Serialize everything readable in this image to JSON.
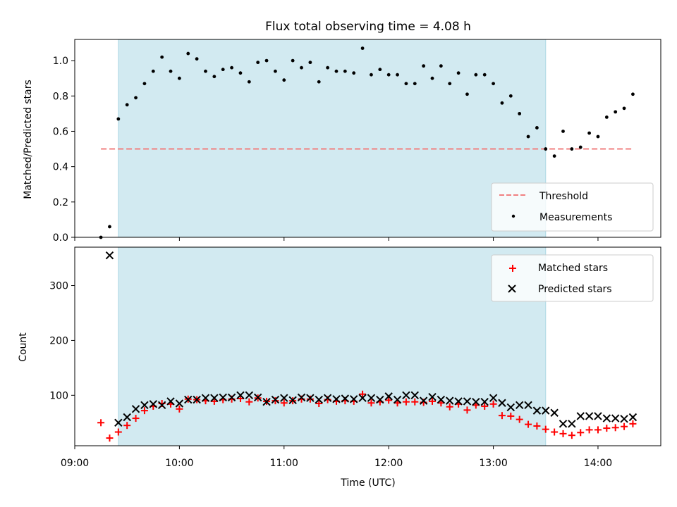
{
  "title": "Flux total observing time = 4.08 h",
  "colors": {
    "observing_band": "#add8e6",
    "threshold": "#f08080",
    "measurements": "#000000",
    "matched": "#ff0000",
    "predicted": "#000000"
  },
  "chart_data": [
    {
      "type": "scatter",
      "panel": "top",
      "ylabel": "Matched/Predicted stars",
      "xlim": [
        "09:00",
        "14:36"
      ],
      "ylim": [
        0,
        1.12
      ],
      "yticks": [
        "0.0",
        "0.2",
        "0.4",
        "0.6",
        "0.8",
        "1.0"
      ],
      "observing_window": [
        "09:25",
        "13:30"
      ],
      "legend": {
        "placement": "lower-right",
        "entries": [
          "Threshold",
          "Measurements"
        ]
      },
      "threshold": {
        "name": "Threshold",
        "value": 0.5,
        "x_range": [
          "09:15",
          "14:20"
        ],
        "style": "dashed"
      },
      "series": [
        {
          "name": "Measurements",
          "x": [
            "09:15",
            "09:20",
            "09:25",
            "09:30",
            "09:35",
            "09:40",
            "09:45",
            "09:50",
            "09:55",
            "10:00",
            "10:05",
            "10:10",
            "10:15",
            "10:20",
            "10:25",
            "10:30",
            "10:35",
            "10:40",
            "10:45",
            "10:50",
            "10:55",
            "11:00",
            "11:05",
            "11:10",
            "11:15",
            "11:20",
            "11:25",
            "11:30",
            "11:35",
            "11:40",
            "11:45",
            "11:50",
            "11:55",
            "12:00",
            "12:05",
            "12:10",
            "12:15",
            "12:20",
            "12:25",
            "12:30",
            "12:35",
            "12:40",
            "12:45",
            "12:50",
            "12:55",
            "13:00",
            "13:05",
            "13:10",
            "13:15",
            "13:20",
            "13:25",
            "13:30",
            "13:35",
            "13:40",
            "13:45",
            "13:50",
            "13:55",
            "14:00",
            "14:05",
            "14:10",
            "14:15",
            "14:20"
          ],
          "y": [
            0.0,
            0.06,
            0.67,
            0.75,
            0.79,
            0.87,
            0.94,
            1.02,
            0.94,
            0.9,
            1.04,
            1.01,
            0.94,
            0.91,
            0.95,
            0.96,
            0.93,
            0.88,
            0.99,
            1.0,
            0.94,
            0.89,
            1.0,
            0.96,
            0.99,
            0.88,
            0.96,
            0.94,
            0.94,
            0.93,
            1.07,
            0.92,
            0.95,
            0.92,
            0.92,
            0.87,
            0.87,
            0.97,
            0.9,
            0.97,
            0.87,
            0.93,
            0.81,
            0.92,
            0.92,
            0.87,
            0.76,
            0.8,
            0.7,
            0.57,
            0.62,
            0.5,
            0.46,
            0.6,
            0.5,
            0.51,
            0.59,
            0.57,
            0.68,
            0.71,
            0.73,
            0.81
          ]
        }
      ]
    },
    {
      "type": "scatter",
      "panel": "bottom",
      "xlabel": "Time (UTC)",
      "ylabel": "Count",
      "xlim": [
        "09:00",
        "14:36"
      ],
      "ylim": [
        8,
        370
      ],
      "xticks": [
        "09:00",
        "10:00",
        "11:00",
        "12:00",
        "13:00",
        "14:00"
      ],
      "yticks": [
        "100",
        "200",
        "300"
      ],
      "observing_window": [
        "09:25",
        "13:30"
      ],
      "legend": {
        "placement": "upper-right",
        "entries": [
          "Matched stars",
          "Predicted stars"
        ]
      },
      "series": [
        {
          "name": "Matched stars",
          "x": [
            "09:15",
            "09:20",
            "09:25",
            "09:30",
            "09:35",
            "09:40",
            "09:45",
            "09:50",
            "09:55",
            "10:00",
            "10:05",
            "10:10",
            "10:15",
            "10:20",
            "10:25",
            "10:30",
            "10:35",
            "10:40",
            "10:45",
            "10:50",
            "10:55",
            "11:00",
            "11:05",
            "11:10",
            "11:15",
            "11:20",
            "11:25",
            "11:30",
            "11:35",
            "11:40",
            "11:45",
            "11:50",
            "11:55",
            "12:00",
            "12:05",
            "12:10",
            "12:15",
            "12:20",
            "12:25",
            "12:30",
            "12:35",
            "12:40",
            "12:45",
            "12:50",
            "12:55",
            "13:00",
            "13:05",
            "13:10",
            "13:15",
            "13:20",
            "13:25",
            "13:30",
            "13:35",
            "13:40",
            "13:45",
            "13:50",
            "13:55",
            "14:00",
            "14:05",
            "14:10",
            "14:15",
            "14:20"
          ],
          "y": [
            50,
            22,
            33,
            45,
            58,
            72,
            80,
            85,
            84,
            75,
            93,
            92,
            90,
            89,
            92,
            93,
            94,
            88,
            95,
            89,
            90,
            86,
            90,
            93,
            93,
            85,
            92,
            89,
            90,
            89,
            102,
            86,
            88,
            91,
            86,
            88,
            88,
            87,
            89,
            86,
            79,
            84,
            73,
            82,
            80,
            84,
            63,
            62,
            56,
            47,
            44,
            38,
            33,
            30,
            27,
            32,
            37,
            37,
            40,
            41,
            43,
            48
          ]
        },
        {
          "name": "Predicted stars",
          "x": [
            "09:20",
            "09:25",
            "09:30",
            "09:35",
            "09:40",
            "09:45",
            "09:50",
            "09:55",
            "10:00",
            "10:05",
            "10:10",
            "10:15",
            "10:20",
            "10:25",
            "10:30",
            "10:35",
            "10:40",
            "10:45",
            "10:50",
            "10:55",
            "11:00",
            "11:05",
            "11:10",
            "11:15",
            "11:20",
            "11:25",
            "11:30",
            "11:35",
            "11:40",
            "11:45",
            "11:50",
            "11:55",
            "12:00",
            "12:05",
            "12:10",
            "12:15",
            "12:20",
            "12:25",
            "12:30",
            "12:35",
            "12:40",
            "12:45",
            "12:50",
            "12:55",
            "13:00",
            "13:05",
            "13:10",
            "13:15",
            "13:20",
            "13:25",
            "13:30",
            "13:35",
            "13:40",
            "13:45",
            "13:50",
            "13:55",
            "14:00",
            "14:05",
            "14:10",
            "14:15",
            "14:20"
          ],
          "y": [
            355,
            50,
            60,
            75,
            82,
            84,
            82,
            89,
            85,
            92,
            92,
            95,
            95,
            96,
            96,
            100,
            100,
            96,
            88,
            92,
            95,
            91,
            96,
            95,
            92,
            95,
            93,
            94,
            93,
            95,
            95,
            92,
            98,
            92,
            100,
            100,
            90,
            97,
            92,
            90,
            89,
            89,
            88,
            88,
            95,
            86,
            78,
            82,
            82,
            72,
            72,
            68,
            48,
            48,
            62,
            62,
            62,
            58,
            58,
            57,
            60
          ]
        }
      ]
    }
  ]
}
